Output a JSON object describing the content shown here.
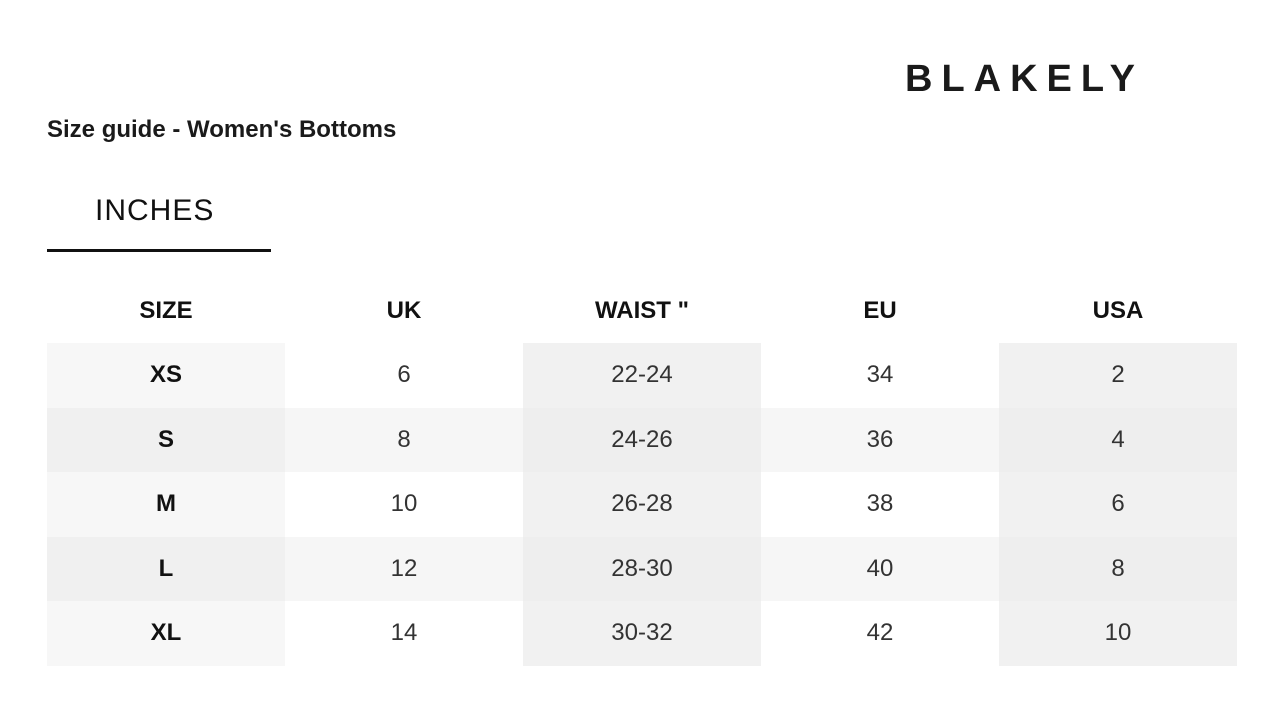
{
  "brand": "BLAKELY",
  "title": "Size guide - Women's Bottoms",
  "tab": {
    "label": "INCHES"
  },
  "table": {
    "headers": [
      "SIZE",
      "UK",
      "WAIST \"",
      "EU",
      "USA"
    ],
    "rows": [
      [
        "XS",
        "6",
        "22-24",
        "34",
        "2"
      ],
      [
        "S",
        "8",
        "24-26",
        "36",
        "4"
      ],
      [
        "M",
        "10",
        "26-28",
        "38",
        "6"
      ],
      [
        "L",
        "12",
        "28-30",
        "40",
        "8"
      ],
      [
        "XL",
        "14",
        "30-32",
        "42",
        "10"
      ]
    ]
  }
}
